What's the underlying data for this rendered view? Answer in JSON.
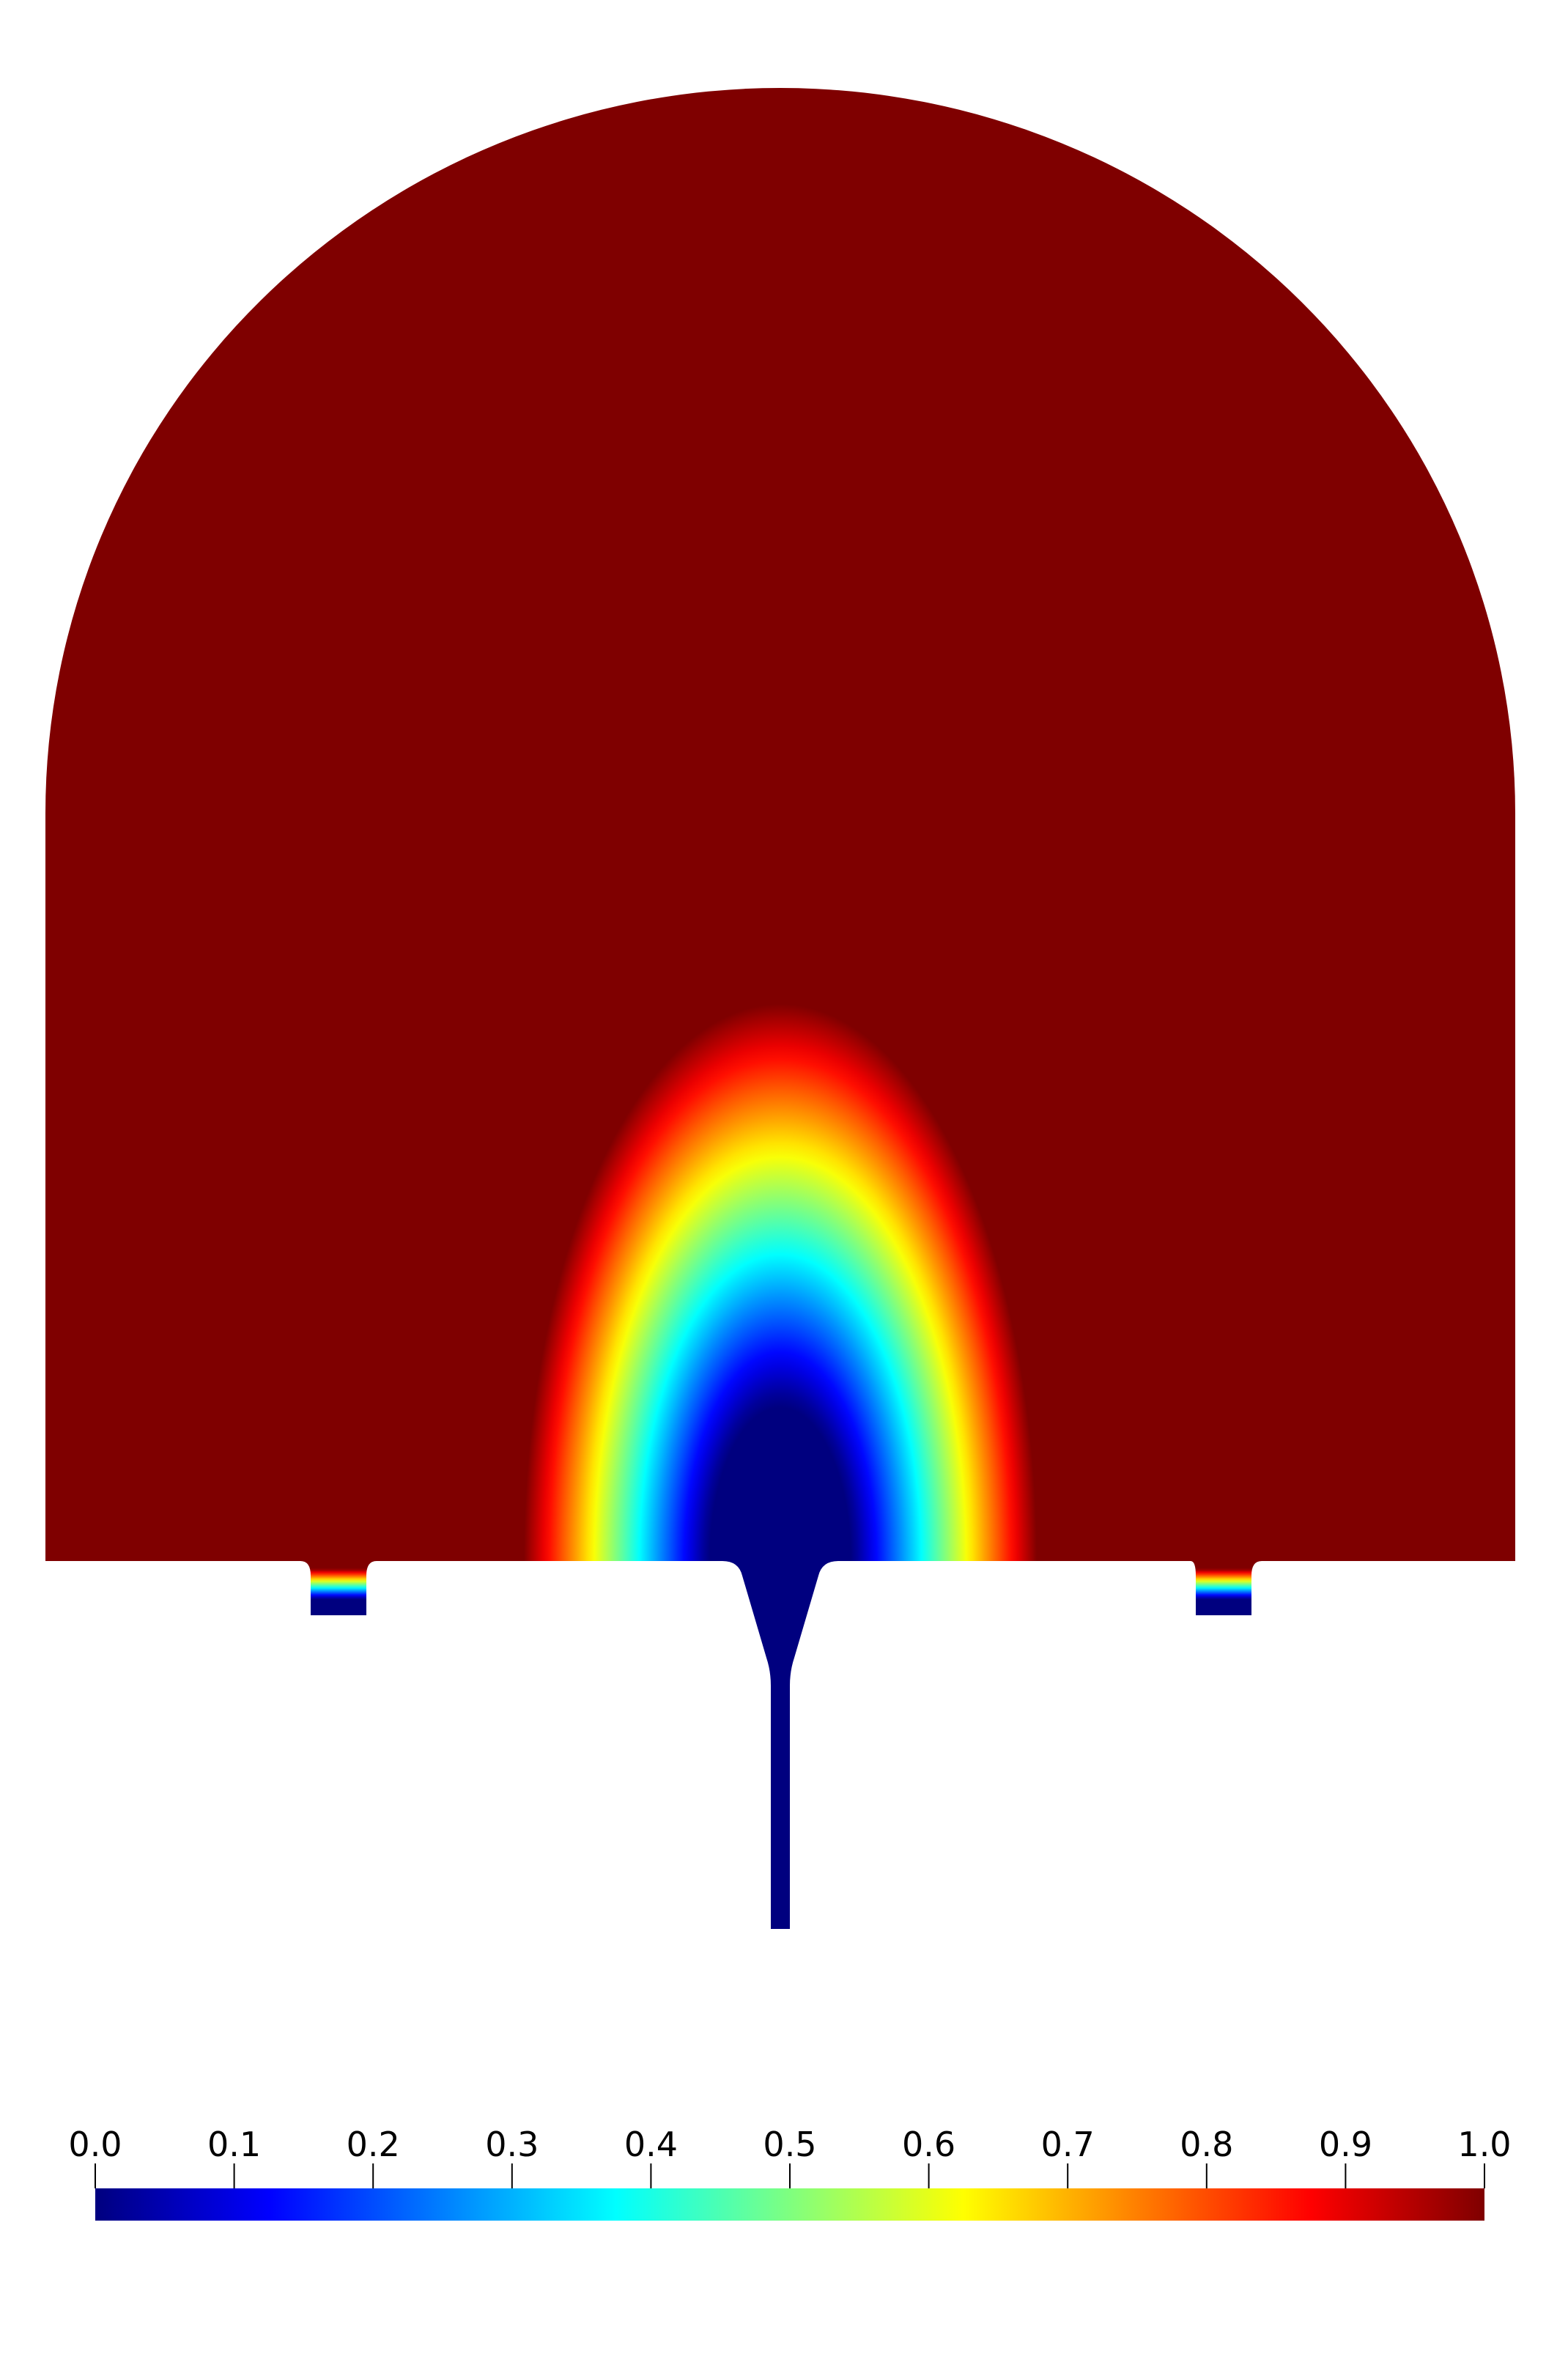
{
  "chart_data": {
    "type": "heatmap",
    "title": "",
    "colormap": "jet",
    "colorbar": {
      "orientation": "horizontal",
      "placement": "bottom",
      "range": [
        0.0,
        1.0
      ],
      "ticks": [
        0.0,
        0.1,
        0.2,
        0.3,
        0.4,
        0.5,
        0.6,
        0.7,
        0.8,
        0.9,
        1.0
      ],
      "tick_labels": [
        "0.0",
        "0.1",
        "0.2",
        "0.3",
        "0.4",
        "0.5",
        "0.6",
        "0.7",
        "0.8",
        "0.9",
        "1.0"
      ],
      "colors": [
        "#00007f",
        "#0000ff",
        "#007fff",
        "#00ffff",
        "#7fff7f",
        "#ffff00",
        "#ff7f00",
        "#ff0000",
        "#7f0000"
      ]
    },
    "field": {
      "background_value": 1.0,
      "jet_center_value": 0.0,
      "inlet_value": 0.0,
      "side_port_values": [
        1.0,
        0.0
      ]
    }
  }
}
